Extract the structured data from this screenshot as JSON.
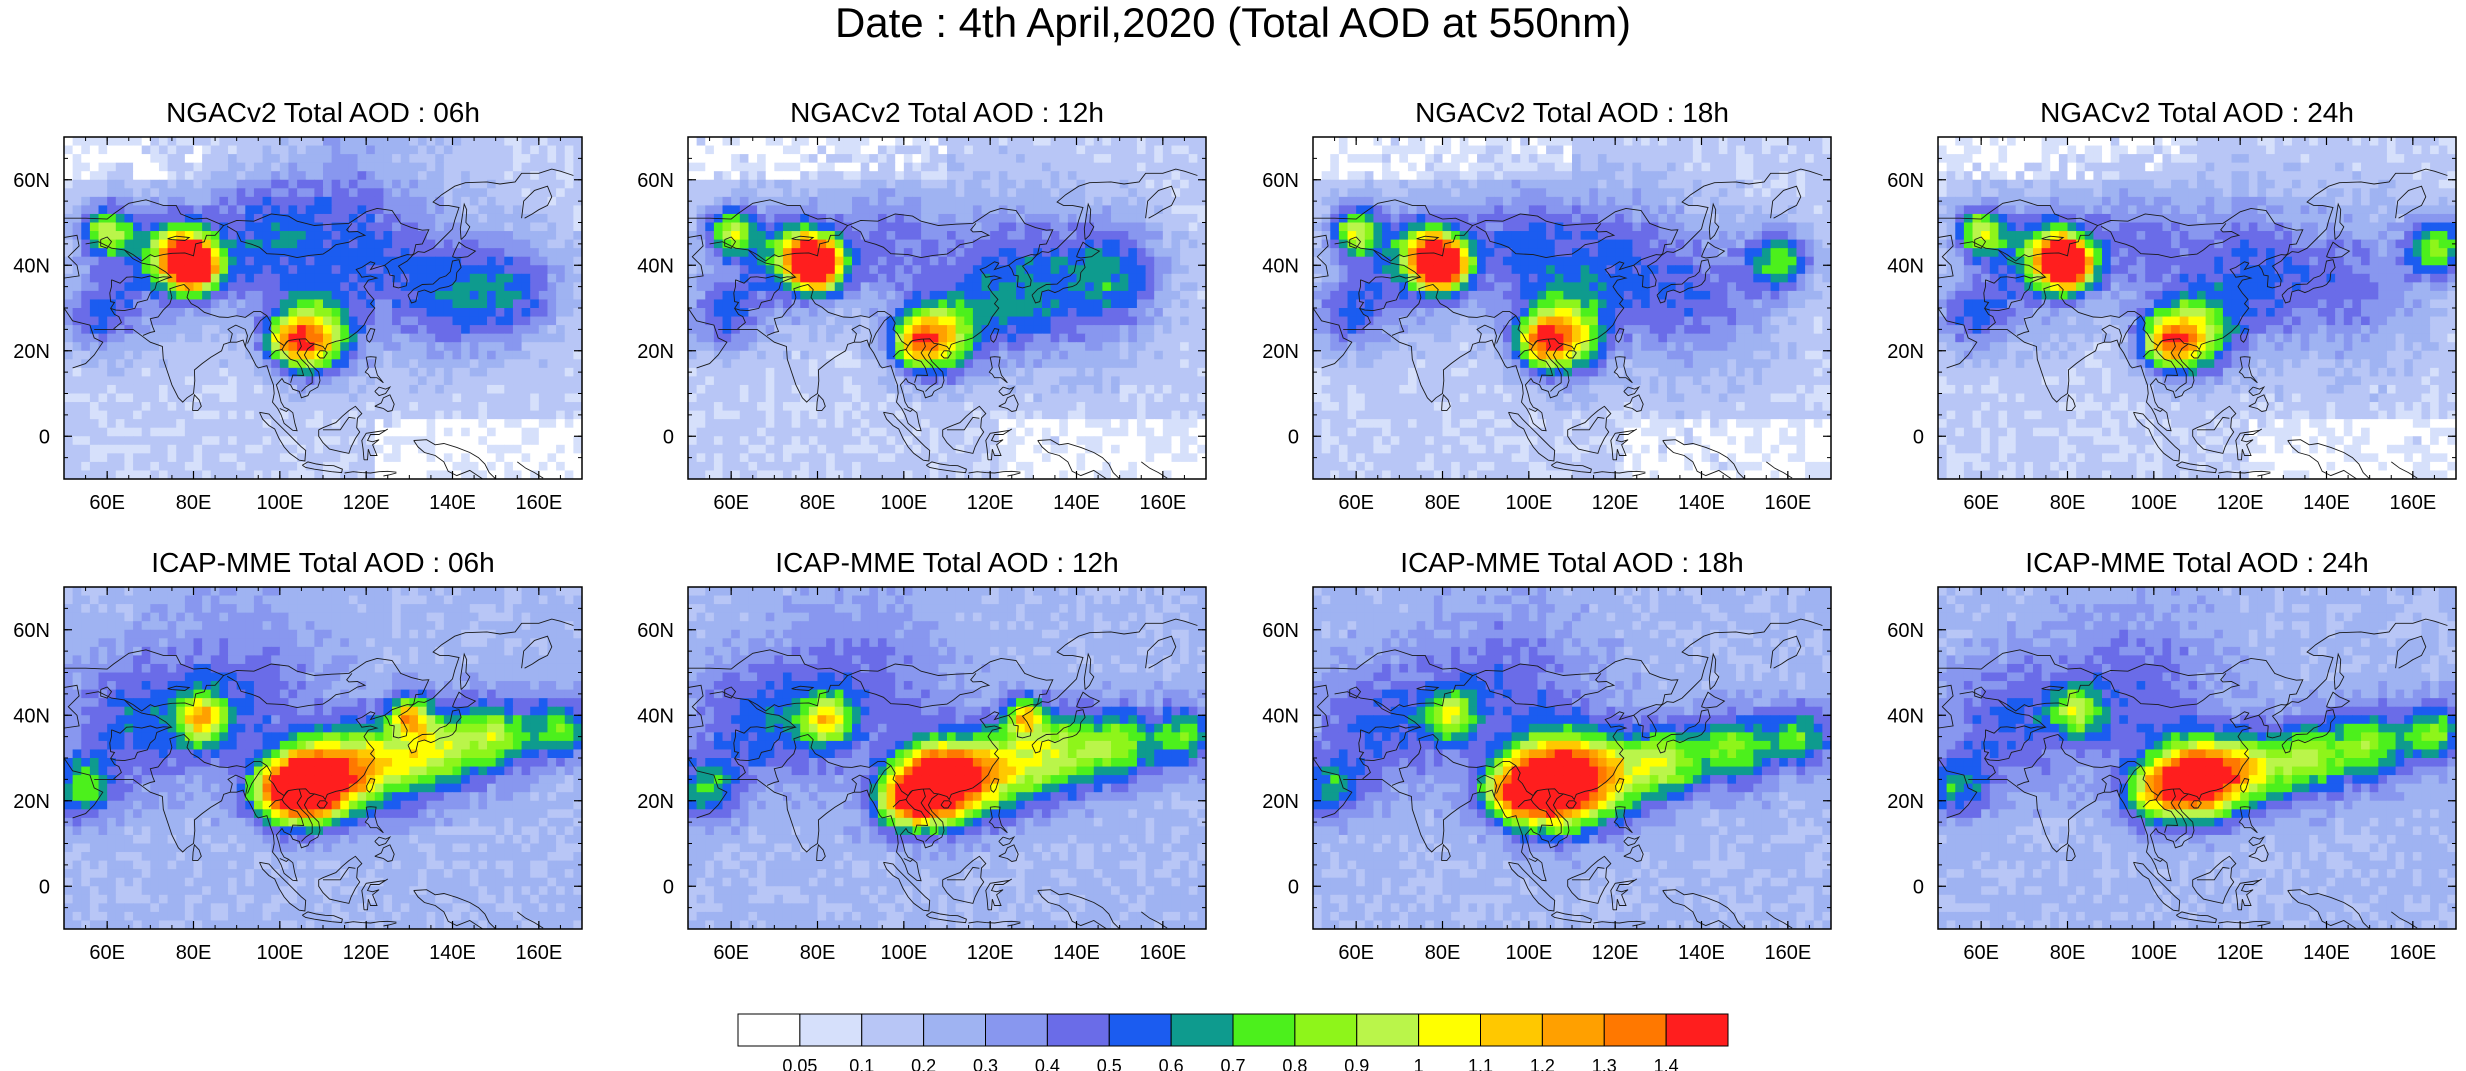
{
  "figure_title": "Date : 4th April,2020 (Total AOD at 550nm)",
  "lon_ticks": [
    "60E",
    "80E",
    "100E",
    "120E",
    "140E",
    "160E"
  ],
  "lat_ticks": [
    "60N",
    "40N",
    "20N",
    "0"
  ],
  "lon_values": [
    60,
    80,
    100,
    120,
    140,
    160
  ],
  "lat_values": [
    60,
    40,
    20,
    0
  ],
  "map_extent": {
    "lon_min": 50,
    "lon_max": 170,
    "lat_min": -10,
    "lat_max": 70
  },
  "panels": [
    {
      "title": "NGACv2 Total AOD : 06h",
      "model": "NGACv2",
      "hour": "06h"
    },
    {
      "title": "NGACv2 Total AOD : 12h",
      "model": "NGACv2",
      "hour": "12h"
    },
    {
      "title": "NGACv2 Total AOD : 18h",
      "model": "NGACv2",
      "hour": "18h"
    },
    {
      "title": "NGACv2 Total AOD : 24h",
      "model": "NGACv2",
      "hour": "24h"
    },
    {
      "title": "ICAP-MME Total AOD : 06h",
      "model": "ICAP-MME",
      "hour": "06h"
    },
    {
      "title": "ICAP-MME Total AOD : 12h",
      "model": "ICAP-MME",
      "hour": "12h"
    },
    {
      "title": "ICAP-MME Total AOD : 18h",
      "model": "ICAP-MME",
      "hour": "18h"
    },
    {
      "title": "ICAP-MME Total AOD : 24h",
      "model": "ICAP-MME",
      "hour": "24h"
    }
  ],
  "colorbar": {
    "labels": [
      "0.05",
      "0.1",
      "0.2",
      "0.3",
      "0.4",
      "0.5",
      "0.6",
      "0.7",
      "0.8",
      "0.9",
      "1",
      "1.1",
      "1.2",
      "1.3",
      "1.4"
    ],
    "colors": [
      "#ffffff",
      "#d6e0fb",
      "#b8c6f6",
      "#9fb3f2",
      "#8897ef",
      "#6a6ce8",
      "#1b5cf0",
      "#0e9b8e",
      "#4cf01c",
      "#8ef51a",
      "#baf54a",
      "#ffff00",
      "#ffc800",
      "#ffa000",
      "#ff7800",
      "#ff1e1e"
    ]
  }
}
